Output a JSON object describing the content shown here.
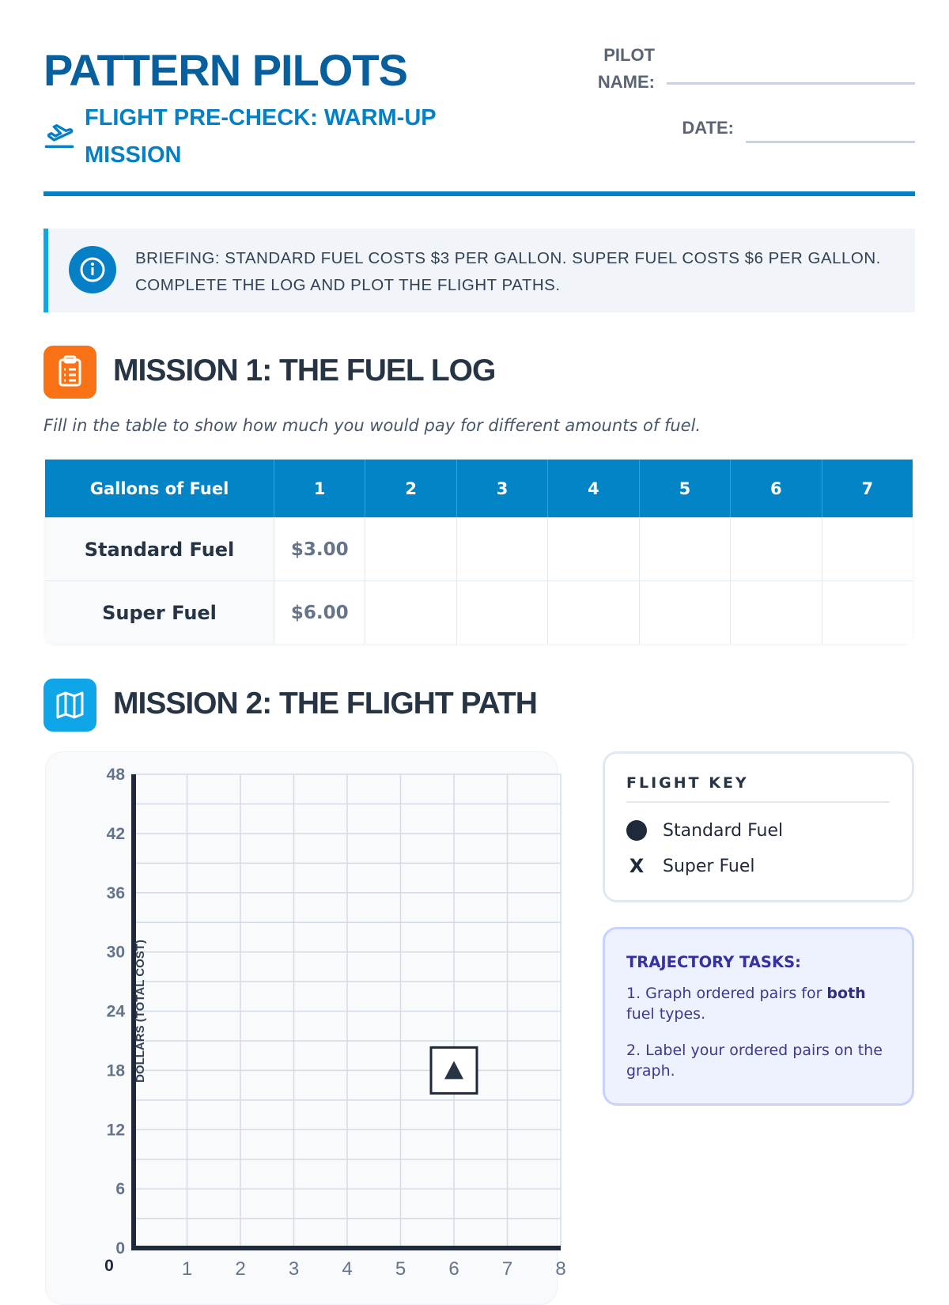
{
  "header": {
    "title": "PATTERN PILOTS",
    "subtitle": "FLIGHT PRE-CHECK: WARM-UP MISSION",
    "pilot_label_1": "PILOT",
    "pilot_label_2": "NAME:",
    "date_label": "DATE:",
    "pilot_name_value": "",
    "date_value": ""
  },
  "briefing": {
    "icon": "info-icon",
    "text": "BRIEFING: STANDARD FUEL COSTS $3 PER GALLON. SUPER FUEL COSTS $6 PER GALLON. COMPLETE THE LOG AND PLOT THE FLIGHT PATHS."
  },
  "mission1": {
    "icon": "clipboard-icon",
    "title": "MISSION 1: THE FUEL LOG",
    "instruction": "Fill in the table to show how much you would pay for different amounts of fuel.",
    "table": {
      "headers": [
        "Gallons of Fuel",
        "1",
        "2",
        "3",
        "4",
        "5",
        "6",
        "7"
      ],
      "rows": [
        {
          "label": "Standard Fuel",
          "cells": [
            "$3.00",
            "",
            "",
            "",
            "",
            "",
            ""
          ]
        },
        {
          "label": "Super Fuel",
          "cells": [
            "$6.00",
            "",
            "",
            "",
            "",
            "",
            ""
          ]
        }
      ]
    }
  },
  "mission2": {
    "icon": "map-icon",
    "title": "MISSION 2: THE FLIGHT PATH"
  },
  "chart_data": {
    "type": "scatter",
    "ylabel": "DOLLARS (TOTAL COST)",
    "xlabel": "",
    "xlim": [
      0,
      8
    ],
    "ylim": [
      0,
      48
    ],
    "x_ticks": [
      "0",
      "1",
      "2",
      "3",
      "4",
      "5",
      "6",
      "7",
      "8"
    ],
    "y_ticks": [
      "0",
      "6",
      "12",
      "18",
      "24",
      "30",
      "36",
      "42",
      "48"
    ],
    "grid": true,
    "grid_x_step": 1,
    "grid_y_step": 3,
    "markers": [
      {
        "x": 6,
        "y": 18,
        "symbol": "boxed-triangle"
      }
    ],
    "series": []
  },
  "key": {
    "title": "FLIGHT KEY",
    "items": [
      {
        "symbol": "filled-circle",
        "label": "Standard Fuel"
      },
      {
        "symbol": "x",
        "label": "Super Fuel"
      }
    ]
  },
  "tasks": {
    "title": "TRAJECTORY TASKS:",
    "item1_pre": "1. Graph ordered pairs for ",
    "item1_bold": "both",
    "item1_post": " fuel types.",
    "item2": "2. Label your ordered pairs on the graph."
  },
  "colors": {
    "brand": "#075f9e",
    "accent": "#0284c7",
    "orange": "#f97316",
    "sky": "#0ea5e9",
    "ink": "#1e293b"
  }
}
